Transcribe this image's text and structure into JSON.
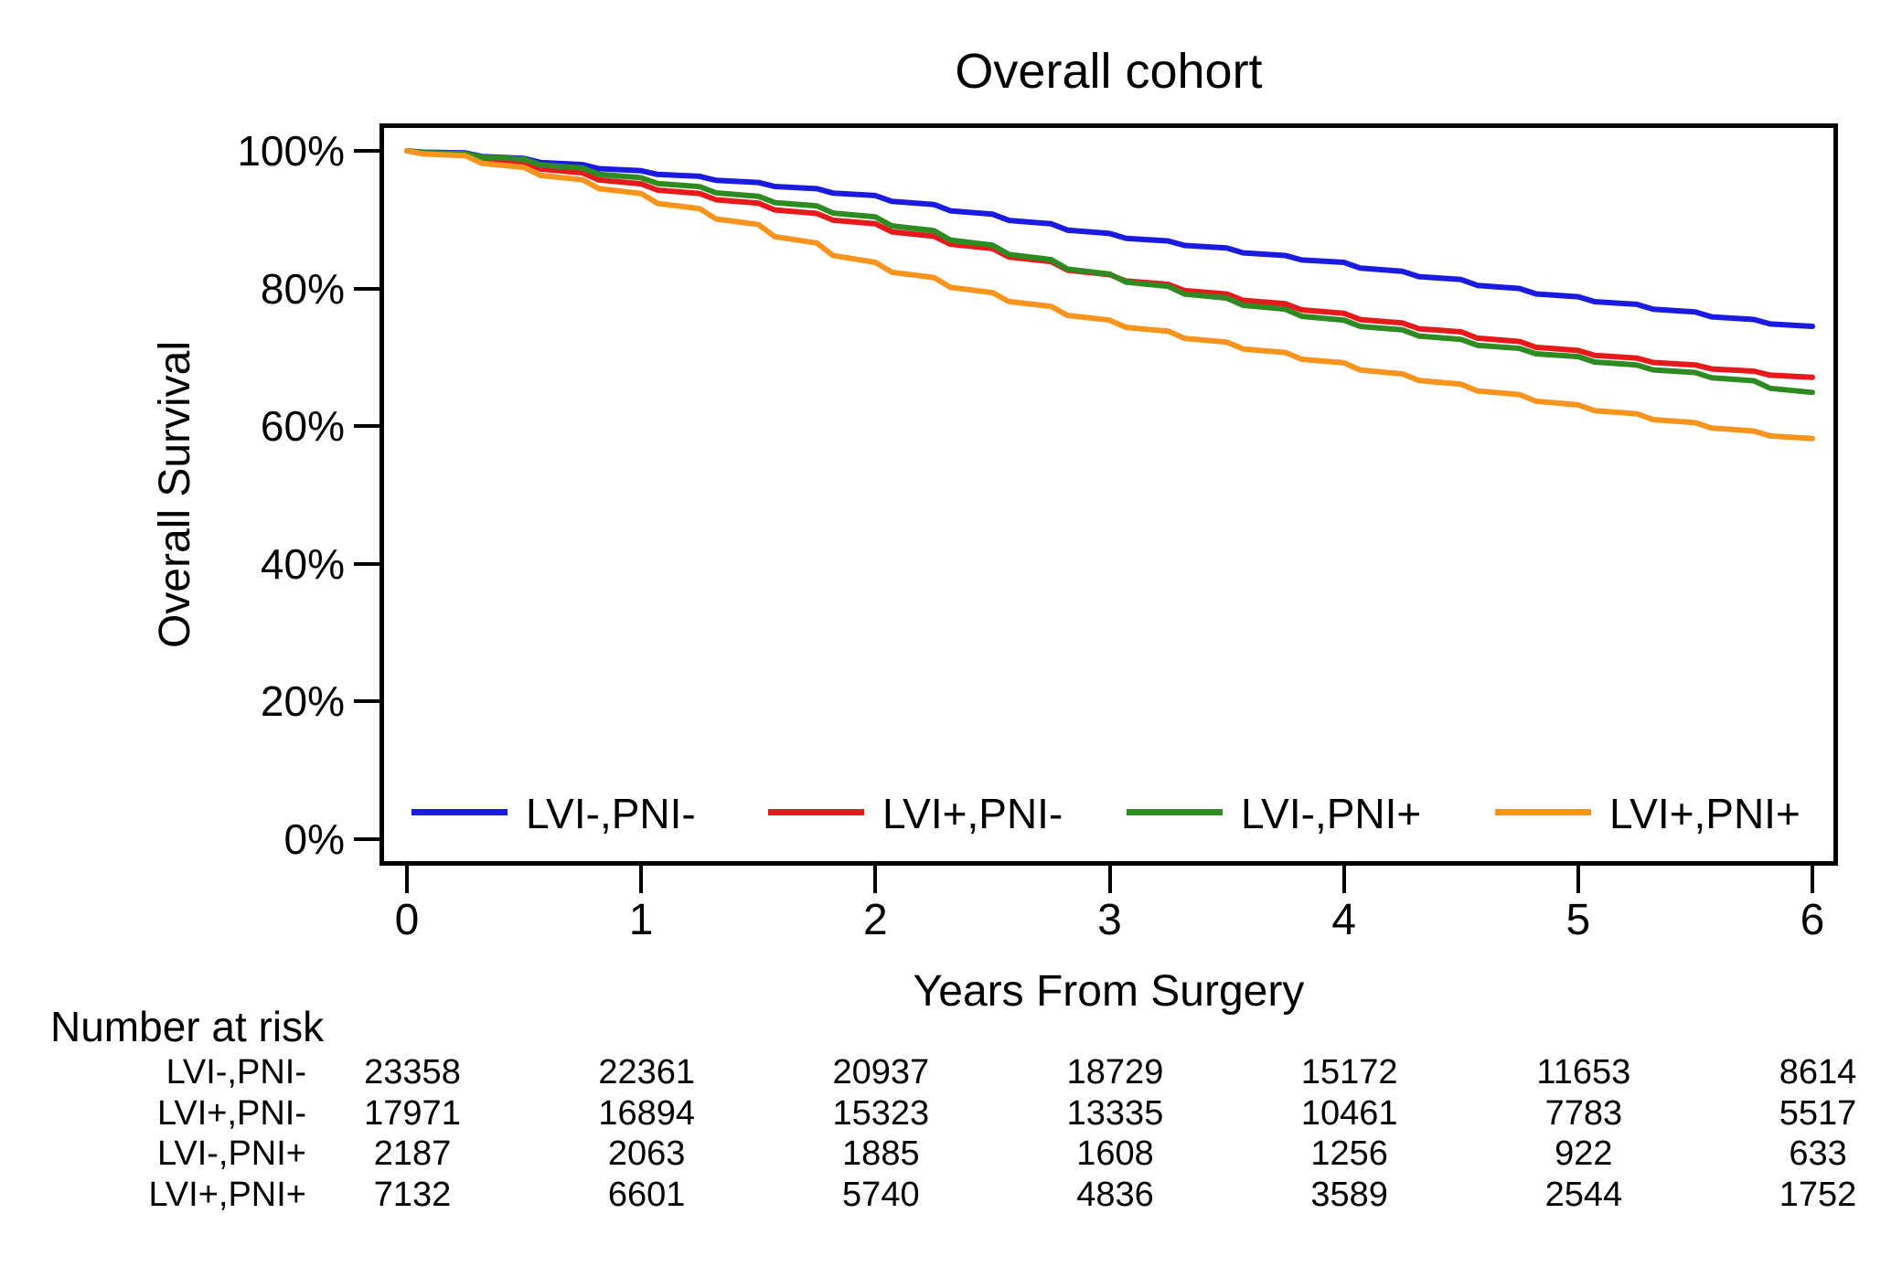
{
  "title": "Overall cohort",
  "axes": {
    "y_title": "Overall Survival",
    "x_title": "Years From Surgery",
    "y_tick_labels": [
      "100%",
      "80%",
      "60%",
      "40%",
      "20%",
      "0%"
    ],
    "y_tick_values": [
      100,
      80,
      60,
      40,
      20,
      0
    ],
    "x_tick_labels": [
      "0",
      "1",
      "2",
      "3",
      "4",
      "5",
      "6"
    ],
    "x_tick_values": [
      0,
      1,
      2,
      3,
      4,
      5,
      6
    ]
  },
  "legend": [
    {
      "label": "LVI-,PNI-",
      "color": "#1a1ae0"
    },
    {
      "label": "LVI+,PNI-",
      "color": "#e8191c"
    },
    {
      "label": "LVI-,PNI+",
      "color": "#2e8b22"
    },
    {
      "label": "LVI+,PNI+",
      "color": "#f7941e"
    }
  ],
  "chart_data": {
    "type": "line",
    "subtype": "kaplan-meier-survival",
    "title": "Overall cohort",
    "xlabel": "Years From Surgery",
    "ylabel": "Overall Survival",
    "xlim": [
      0,
      6
    ],
    "ylim": [
      0,
      100
    ],
    "grid": false,
    "legend_position": "inside-bottom",
    "x": [
      0,
      0.25,
      0.5,
      0.75,
      1,
      1.25,
      1.5,
      1.75,
      2,
      2.25,
      2.5,
      2.75,
      3,
      3.25,
      3.5,
      3.75,
      4,
      4.25,
      4.5,
      4.75,
      5,
      5.25,
      5.5,
      5.75,
      6
    ],
    "series": [
      {
        "name": "LVI-,PNI-",
        "color": "#1a1ae0",
        "values_pct": [
          100,
          99.7,
          98.9,
          98.0,
          97.1,
          96.3,
          95.4,
          94.5,
          93.5,
          92.2,
          90.8,
          89.4,
          88.0,
          86.9,
          85.9,
          84.8,
          83.8,
          82.5,
          81.3,
          80.0,
          78.8,
          77.7,
          76.6,
          75.5,
          74.5
        ]
      },
      {
        "name": "LVI+,PNI-",
        "color": "#e8191c",
        "values_pct": [
          100,
          99.5,
          98.4,
          96.8,
          95.2,
          93.8,
          92.4,
          90.9,
          89.4,
          87.6,
          85.8,
          83.9,
          82.0,
          80.6,
          79.2,
          77.8,
          76.4,
          75.0,
          73.7,
          72.3,
          71.0,
          69.9,
          68.9,
          68.0,
          67.1
        ]
      },
      {
        "name": "LVI-,PNI+",
        "color": "#2e8b22",
        "values_pct": [
          100,
          99.6,
          98.8,
          97.5,
          96.1,
          94.8,
          93.4,
          92.0,
          90.4,
          88.4,
          86.3,
          84.2,
          82.1,
          80.3,
          78.6,
          77.0,
          75.4,
          74.0,
          72.6,
          71.3,
          70.1,
          68.9,
          67.8,
          66.6,
          64.9
        ]
      },
      {
        "name": "LVI+,PNI+",
        "color": "#f7941e",
        "values_pct": [
          100,
          99.3,
          97.6,
          95.8,
          93.8,
          91.6,
          89.3,
          86.6,
          83.8,
          81.6,
          79.4,
          77.4,
          75.4,
          73.8,
          72.2,
          70.7,
          69.2,
          67.6,
          66.1,
          64.6,
          63.1,
          61.8,
          60.5,
          59.3,
          58.2
        ]
      }
    ],
    "number_at_risk": {
      "header": "Number at risk",
      "times": [
        0,
        1,
        2,
        3,
        4,
        5,
        6
      ],
      "rows": [
        {
          "name": "LVI-,PNI-",
          "counts": [
            "23358",
            "22361",
            "20937",
            "18729",
            "15172",
            "11653",
            "8614"
          ]
        },
        {
          "name": "LVI+,PNI-",
          "counts": [
            "17971",
            "16894",
            "15323",
            "13335",
            "10461",
            "7783",
            "5517"
          ]
        },
        {
          "name": "LVI-,PNI+",
          "counts": [
            "2187",
            "2063",
            "1885",
            "1608",
            "1256",
            "922",
            "633"
          ]
        },
        {
          "name": "LVI+,PNI+",
          "counts": [
            "7132",
            "6601",
            "5740",
            "4836",
            "3589",
            "2544",
            "1752"
          ]
        }
      ]
    }
  }
}
